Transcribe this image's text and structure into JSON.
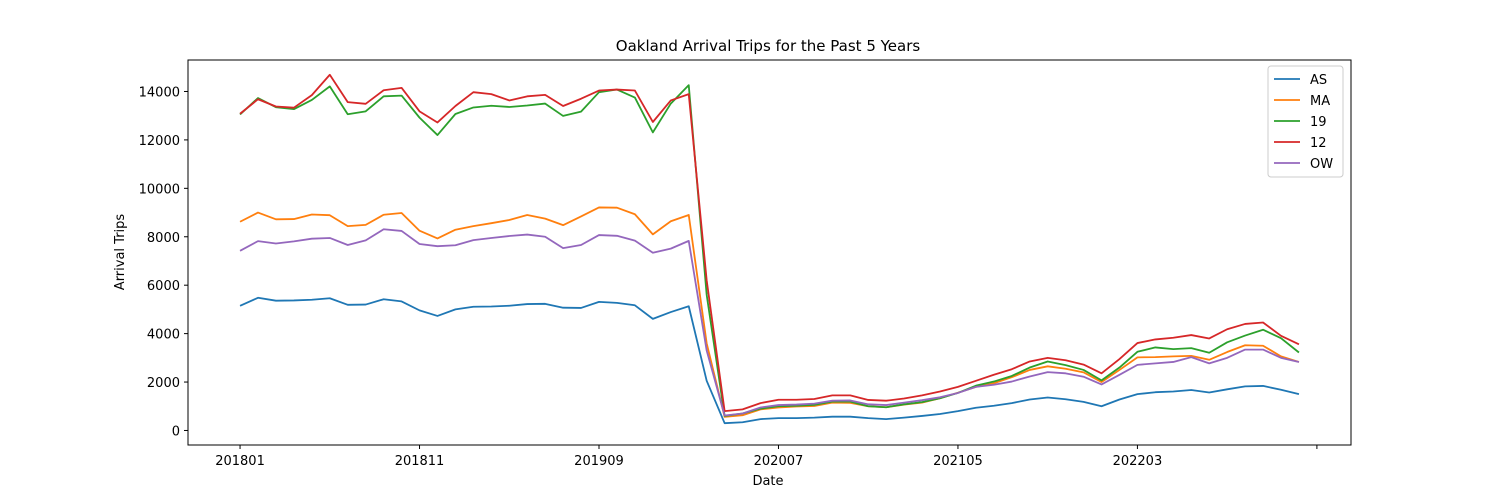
{
  "chart_data": {
    "type": "line",
    "title": "Oakland Arrival Trips for the Past 5 Years",
    "xlabel": "Date",
    "ylabel": "Arrival Trips",
    "ylim": [
      -600,
      15300
    ],
    "yticks": [
      0,
      2000,
      4000,
      6000,
      8000,
      10000,
      12000,
      14000
    ],
    "xtick_labels": [
      "201801",
      "201811",
      "201909",
      "202007",
      "202105",
      "202203",
      ""
    ],
    "xtick_positions": [
      0,
      10,
      20,
      30,
      40,
      50,
      60
    ],
    "x_range": [
      -2.9,
      61.9
    ],
    "grid": false,
    "legend_position": "top-right",
    "series": [
      {
        "name": "AS",
        "color": "#1f77b4",
        "values": [
          5150,
          5480,
          5360,
          5370,
          5400,
          5460,
          5190,
          5200,
          5420,
          5330,
          4960,
          4730,
          5000,
          5110,
          5120,
          5150,
          5220,
          5230,
          5070,
          5060,
          5310,
          5270,
          5170,
          4610,
          4890,
          5130,
          2050,
          300,
          340,
          470,
          510,
          510,
          530,
          570,
          570,
          510,
          470,
          530,
          600,
          680,
          800,
          940,
          1020,
          1130,
          1280,
          1360,
          1290,
          1180,
          1000,
          1280,
          1500,
          1580,
          1610,
          1670,
          1570,
          1700,
          1820,
          1840,
          1680,
          1500
        ]
      },
      {
        "name": "MA",
        "color": "#ff7f0e",
        "values": [
          8620,
          9000,
          8720,
          8730,
          8920,
          8890,
          8440,
          8490,
          8910,
          8980,
          8250,
          7930,
          8290,
          8440,
          8560,
          8690,
          8900,
          8750,
          8480,
          8840,
          9210,
          9200,
          8930,
          8100,
          8640,
          8900,
          3600,
          560,
          630,
          870,
          950,
          990,
          1010,
          1150,
          1140,
          1000,
          960,
          1070,
          1150,
          1330,
          1560,
          1800,
          1950,
          2200,
          2500,
          2650,
          2550,
          2400,
          2000,
          2500,
          3020,
          3030,
          3060,
          3080,
          2920,
          3240,
          3520,
          3500,
          3060,
          2830
        ]
      },
      {
        "name": "19",
        "color": "#2ca02c",
        "values": [
          13050,
          13730,
          13350,
          13270,
          13650,
          14210,
          13060,
          13180,
          13800,
          13830,
          12920,
          12200,
          13070,
          13340,
          13410,
          13360,
          13420,
          13500,
          12990,
          13170,
          13970,
          14080,
          13750,
          12310,
          13500,
          14260,
          5600,
          600,
          700,
          900,
          1000,
          1020,
          1060,
          1190,
          1190,
          1000,
          960,
          1080,
          1170,
          1330,
          1550,
          1850,
          2020,
          2250,
          2600,
          2850,
          2700,
          2500,
          2070,
          2600,
          3250,
          3430,
          3360,
          3400,
          3210,
          3640,
          3920,
          4160,
          3810,
          3220
        ]
      },
      {
        "name": "12",
        "color": "#d62728",
        "values": [
          13080,
          13680,
          13380,
          13330,
          13850,
          14690,
          13560,
          13490,
          14050,
          14150,
          13180,
          12720,
          13400,
          13970,
          13890,
          13630,
          13800,
          13860,
          13400,
          13700,
          14040,
          14080,
          14040,
          12740,
          13630,
          13890,
          6200,
          800,
          870,
          1130,
          1270,
          1270,
          1300,
          1450,
          1450,
          1260,
          1230,
          1320,
          1450,
          1610,
          1800,
          2050,
          2300,
          2530,
          2850,
          3000,
          2900,
          2720,
          2360,
          2950,
          3610,
          3760,
          3830,
          3940,
          3800,
          4180,
          4400,
          4460,
          3910,
          3560
        ]
      },
      {
        "name": "OW",
        "color": "#9467bd",
        "values": [
          7420,
          7820,
          7720,
          7810,
          7920,
          7950,
          7660,
          7850,
          8310,
          8240,
          7700,
          7610,
          7650,
          7860,
          7950,
          8030,
          8090,
          8000,
          7530,
          7660,
          8070,
          8040,
          7840,
          7340,
          7510,
          7830,
          3300,
          620,
          700,
          950,
          1050,
          1070,
          1110,
          1230,
          1240,
          1080,
          1050,
          1150,
          1250,
          1370,
          1550,
          1800,
          1890,
          2020,
          2230,
          2410,
          2360,
          2220,
          1900,
          2300,
          2710,
          2770,
          2830,
          3030,
          2770,
          3000,
          3340,
          3340,
          3000,
          2830
        ]
      }
    ]
  }
}
